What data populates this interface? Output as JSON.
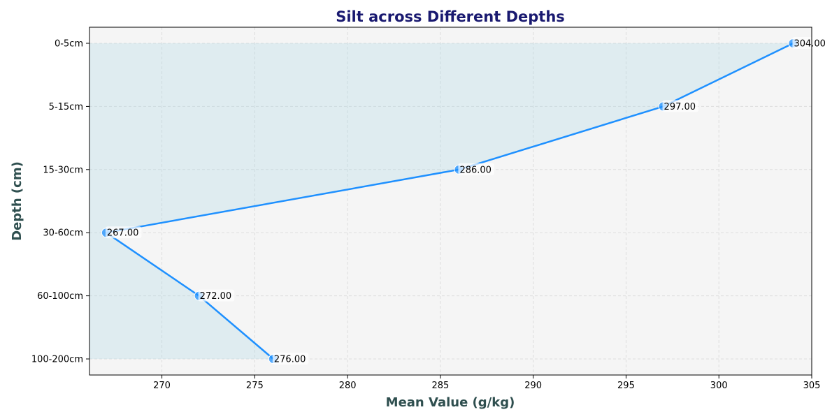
{
  "chart_data": {
    "type": "line",
    "title": "Silt across Different Depths",
    "xlabel": "Mean Value (g/kg)",
    "ylabel": "Depth (cm)",
    "categories": [
      "0-5cm",
      "5-15cm",
      "15-30cm",
      "30-60cm",
      "60-100cm",
      "100-200cm"
    ],
    "values": [
      304,
      297,
      286,
      267,
      272,
      276
    ],
    "value_labels": [
      "304.00",
      "297.00",
      "286.00",
      "267.00",
      "272.00",
      "276.00"
    ],
    "xlim": [
      266.1,
      305
    ],
    "xticks": [
      270,
      275,
      280,
      285,
      290,
      295,
      300,
      305
    ],
    "grid": true,
    "orientation": "horizontal-values",
    "colors": {
      "line": "#1e90ff",
      "marker": "#1e90ff",
      "fill": "#add8e6",
      "plot_bg": "#f5f5f5",
      "grid": "#dddddd",
      "title": "#191970",
      "axis_label": "#2f4f4f"
    }
  }
}
